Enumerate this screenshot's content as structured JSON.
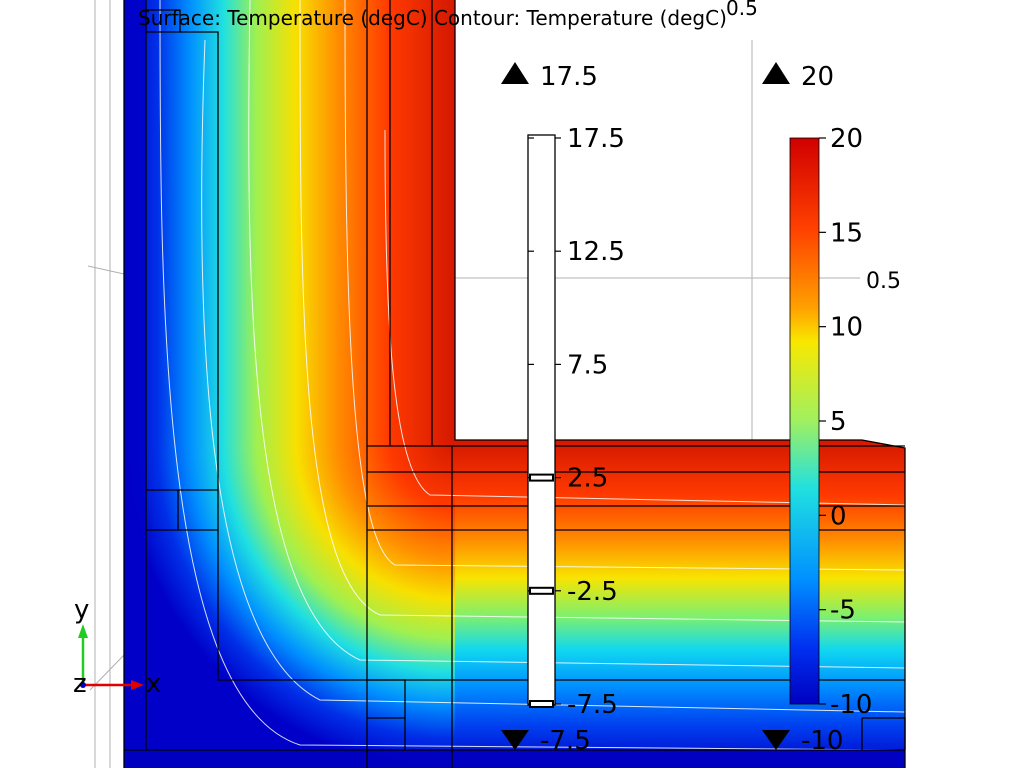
{
  "plot_title": "Surface: Temperature (degC)  Contour: Temperature (degC)",
  "axis_top_label": "0.5",
  "axis_right_label": "0.5",
  "axes_triad": {
    "x": "x",
    "y": "y",
    "z": "z"
  },
  "surface_legend": {
    "max_marker": "20",
    "min_marker": "-10",
    "ticks": [
      "20",
      "15",
      "10",
      "5",
      "0",
      "-5",
      "-10"
    ],
    "tick_values": [
      20,
      15,
      10,
      5,
      0,
      -5,
      -10
    ],
    "range": [
      -10,
      20
    ]
  },
  "contour_legend": {
    "max_marker": "17.5",
    "min_marker": "-7.5",
    "ticks": [
      "17.5",
      "12.5",
      "7.5",
      "2.5",
      "-2.5",
      "-7.5"
    ],
    "tick_values": [
      17.5,
      12.5,
      7.5,
      2.5,
      -2.5,
      -7.5
    ],
    "range": [
      -7.5,
      17.5
    ],
    "level_marks": [
      2.5,
      -2.5,
      -7.5
    ]
  },
  "colors": {
    "rainbow": [
      "#0000d0",
      "#0050ff",
      "#00c8ff",
      "#40f0c0",
      "#c8f040",
      "#f0f000",
      "#ffb000",
      "#ff6000",
      "#e02000",
      "#d00000"
    ]
  }
}
